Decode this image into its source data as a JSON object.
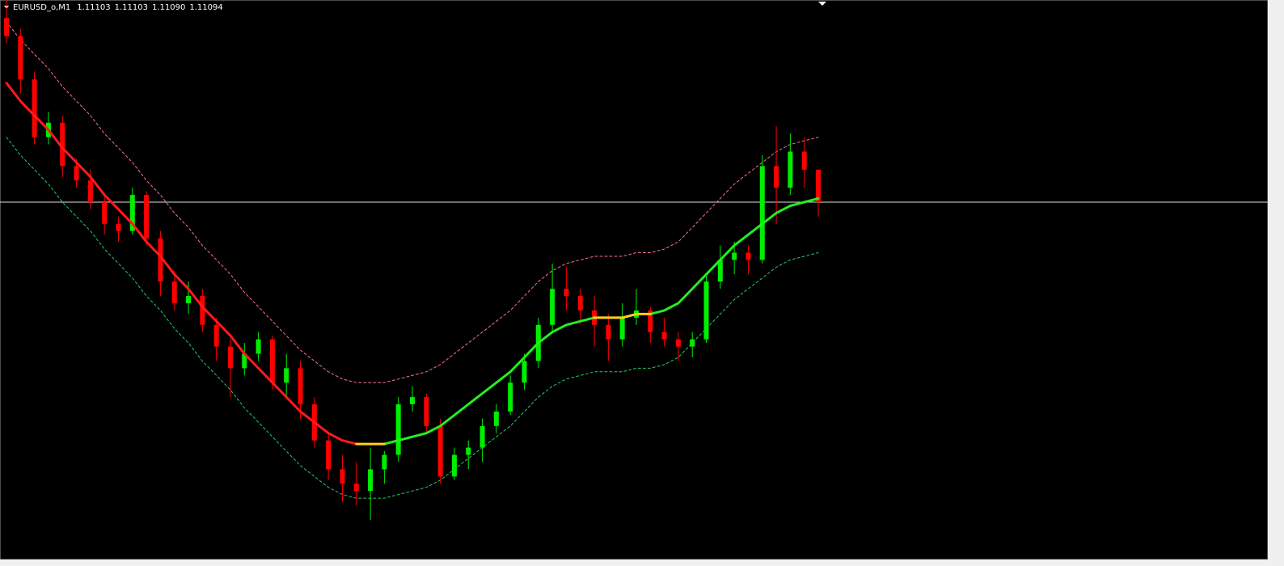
{
  "chart_data": {
    "type": "candlestick",
    "title": "EURUSD_o,M1",
    "ohlc_labels": [
      "1.11103",
      "1.11103",
      "1.11090",
      "1.11094"
    ],
    "ylim": [
      1.10995,
      1.1115
    ],
    "up_color": "#00ee00",
    "down_color": "#ff0000",
    "open": [
      1.11145,
      1.1114,
      1.11128,
      1.11112,
      1.11116,
      1.11104,
      1.111,
      1.11094,
      1.11088,
      1.11086,
      1.11096,
      1.11084,
      1.11072,
      1.11066,
      1.11068,
      1.1106,
      1.11054,
      1.11048,
      1.11052,
      1.11056,
      1.11044,
      1.11048,
      1.11038,
      1.11028,
      1.1102,
      1.11016,
      1.11014,
      1.1102,
      1.11024,
      1.11038,
      1.1104,
      1.11032,
      1.11018,
      1.11024,
      1.11026,
      1.11032,
      1.11036,
      1.11044,
      1.1105,
      1.1106,
      1.1107,
      1.11068,
      1.11064,
      1.1106,
      1.11056,
      1.11062,
      1.11064,
      1.11058,
      1.11056,
      1.11054,
      1.11056,
      1.11072,
      1.11078,
      1.1108,
      1.11078,
      1.11104,
      1.11098,
      1.11108,
      1.11103
    ],
    "high": [
      1.1115,
      1.11142,
      1.1113,
      1.11119,
      1.11118,
      1.11106,
      1.11103,
      1.11096,
      1.1109,
      1.11098,
      1.11097,
      1.11086,
      1.11075,
      1.11072,
      1.1107,
      1.11062,
      1.11056,
      1.11055,
      1.11058,
      1.11057,
      1.11052,
      1.1105,
      1.1104,
      1.1103,
      1.11024,
      1.11022,
      1.11026,
      1.11025,
      1.1104,
      1.11043,
      1.11041,
      1.11034,
      1.11026,
      1.11028,
      1.11034,
      1.11038,
      1.11046,
      1.11052,
      1.11062,
      1.11077,
      1.11076,
      1.1107,
      1.11068,
      1.11063,
      1.11066,
      1.1107,
      1.11065,
      1.11062,
      1.11058,
      1.11058,
      1.11074,
      1.11082,
      1.11083,
      1.11082,
      1.11107,
      1.11115,
      1.11113,
      1.11112,
      1.11103
    ],
    "low": [
      1.11138,
      1.11124,
      1.1111,
      1.1111,
      1.11101,
      1.11098,
      1.11092,
      1.11085,
      1.11083,
      1.11085,
      1.11082,
      1.11068,
      1.11064,
      1.11063,
      1.11058,
      1.1105,
      1.1104,
      1.11046,
      1.1105,
      1.11042,
      1.1104,
      1.11034,
      1.11026,
      1.11017,
      1.11011,
      1.1101,
      1.11006,
      1.11016,
      1.11022,
      1.11036,
      1.1103,
      1.11016,
      1.11017,
      1.1102,
      1.11022,
      1.1103,
      1.11035,
      1.11042,
      1.11048,
      1.11058,
      1.11064,
      1.1106,
      1.11054,
      1.1105,
      1.11054,
      1.1106,
      1.11055,
      1.11054,
      1.1105,
      1.11051,
      1.11055,
      1.1107,
      1.11074,
      1.11074,
      1.11077,
      1.11088,
      1.11096,
      1.11098,
      1.1109
    ],
    "close": [
      1.1114,
      1.11128,
      1.11112,
      1.11116,
      1.11104,
      1.111,
      1.11094,
      1.11088,
      1.11086,
      1.11096,
      1.11084,
      1.11072,
      1.11066,
      1.11068,
      1.1106,
      1.11054,
      1.11048,
      1.11052,
      1.11056,
      1.11044,
      1.11048,
      1.11038,
      1.11028,
      1.1102,
      1.11016,
      1.11014,
      1.1102,
      1.11024,
      1.11038,
      1.1104,
      1.11032,
      1.11018,
      1.11024,
      1.11026,
      1.11032,
      1.11036,
      1.11044,
      1.1105,
      1.1106,
      1.1107,
      1.11068,
      1.11064,
      1.1106,
      1.11056,
      1.11062,
      1.11064,
      1.11058,
      1.11056,
      1.11054,
      1.11056,
      1.11072,
      1.11078,
      1.1108,
      1.11078,
      1.11104,
      1.11098,
      1.11108,
      1.11103,
      1.11094
    ],
    "lines": [
      {
        "color": "#ff6f8f",
        "dashed": true,
        "width": 1,
        "values": [
          1.11144,
          1.11139,
          1.11135,
          1.11131,
          1.11126,
          1.11122,
          1.11118,
          1.11113,
          1.11109,
          1.11105,
          1.111,
          1.11096,
          1.11091,
          1.11087,
          1.11082,
          1.11078,
          1.11074,
          1.11069,
          1.11065,
          1.11061,
          1.11057,
          1.11053,
          1.1105,
          1.11047,
          1.11045,
          1.11044,
          1.11044,
          1.11044,
          1.11045,
          1.11046,
          1.11047,
          1.11049,
          1.11052,
          1.11055,
          1.11058,
          1.11061,
          1.11064,
          1.11068,
          1.11072,
          1.11075,
          1.11077,
          1.11078,
          1.11079,
          1.11079,
          1.11079,
          1.1108,
          1.1108,
          1.11081,
          1.11083,
          1.11087,
          1.11091,
          1.11095,
          1.11099,
          1.11102,
          1.11105,
          1.11108,
          1.1111,
          1.11111,
          1.11112
        ]
      },
      {
        "color": "#22cc66",
        "dashed": true,
        "width": 1,
        "values": [
          1.11112,
          1.11107,
          1.11103,
          1.11099,
          1.11094,
          1.1109,
          1.11086,
          1.11081,
          1.11077,
          1.11073,
          1.11068,
          1.11064,
          1.11059,
          1.11055,
          1.1105,
          1.11046,
          1.11042,
          1.11037,
          1.11033,
          1.11029,
          1.11025,
          1.11021,
          1.11018,
          1.11015,
          1.11013,
          1.11012,
          1.11012,
          1.11012,
          1.11013,
          1.11014,
          1.11015,
          1.11017,
          1.1102,
          1.11023,
          1.11026,
          1.11029,
          1.11032,
          1.11036,
          1.1104,
          1.11043,
          1.11045,
          1.11046,
          1.11047,
          1.11047,
          1.11047,
          1.11048,
          1.11048,
          1.11049,
          1.11051,
          1.11055,
          1.11059,
          1.11063,
          1.11067,
          1.1107,
          1.11073,
          1.11076,
          1.11078,
          1.11079,
          1.1108
        ]
      },
      {
        "color": "#ff1a1a",
        "dashed": false,
        "width": 3,
        "values": [
          1.11127,
          1.11122,
          1.11118,
          1.11114,
          1.11109,
          1.11105,
          1.11101,
          1.11096,
          1.11092,
          1.11088,
          1.11083,
          1.11079,
          1.11074,
          1.1107,
          1.11065,
          1.11061,
          1.11057,
          1.11052,
          1.11048,
          1.11044,
          1.1104,
          1.11036,
          1.11033,
          1.1103,
          1.11028,
          1.11027,
          null,
          null,
          null,
          null,
          null,
          null,
          null,
          null,
          null,
          null,
          null,
          null,
          null,
          null,
          null,
          null,
          null,
          null,
          null,
          null,
          null,
          null,
          null,
          null,
          null,
          null,
          null,
          null,
          null,
          null,
          null,
          null,
          null
        ]
      },
      {
        "color": "#22ee22",
        "dashed": false,
        "width": 3,
        "values": [
          null,
          null,
          null,
          null,
          null,
          null,
          null,
          null,
          null,
          null,
          null,
          null,
          null,
          null,
          null,
          null,
          null,
          null,
          null,
          null,
          null,
          null,
          null,
          null,
          null,
          null,
          null,
          1.11027,
          1.11028,
          1.11029,
          1.1103,
          1.11032,
          1.11035,
          1.11038,
          1.11041,
          1.11044,
          1.11047,
          1.11051,
          1.11055,
          1.11058,
          1.1106,
          1.11061,
          1.11062,
          null,
          null,
          null,
          1.11063,
          1.11064,
          1.11066,
          1.1107,
          1.11074,
          1.11078,
          1.11082,
          1.11085,
          1.11088,
          1.11091,
          1.11093,
          1.11094,
          1.11095
        ]
      },
      {
        "color": "#ffd21a",
        "dashed": false,
        "width": 3,
        "values": [
          null,
          null,
          null,
          null,
          null,
          null,
          null,
          null,
          null,
          null,
          null,
          null,
          null,
          null,
          null,
          null,
          null,
          null,
          null,
          null,
          null,
          null,
          null,
          null,
          null,
          1.11027,
          1.11027,
          1.11027,
          null,
          null,
          null,
          null,
          null,
          null,
          null,
          null,
          null,
          null,
          null,
          null,
          null,
          null,
          1.11062,
          1.11062,
          1.11062,
          1.11063,
          1.11063,
          null,
          null,
          null,
          null,
          null,
          null,
          null,
          null,
          null,
          null,
          null,
          null
        ]
      }
    ]
  }
}
